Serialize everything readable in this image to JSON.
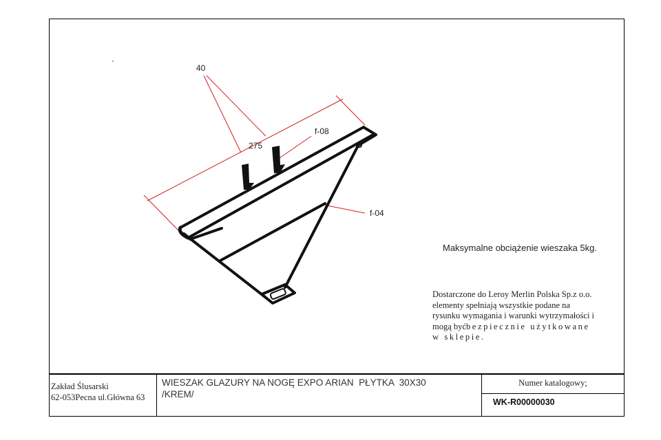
{
  "dimensions": {
    "width_top": "40",
    "length": "275",
    "part_upper": "f-08",
    "part_brace": "f-04"
  },
  "notes": {
    "max_load": "Maksymalne obciążenie wieszaka 5kg.",
    "supply_lines": [
      "Dostarczone do Leroy Merlin Polska Sp.z o.o.",
      "elementy spełniają wszystkie podane na",
      "rysunku wymagania i warunki wytrzymałości i"
    ],
    "supply_line4_prefix": "mogą być",
    "supply_line4_spaced": "bezpiecznie użytkowane",
    "supply_line5_spaced": "w sklepie."
  },
  "title_block": {
    "company_name": "Zakład Ślusarski",
    "company_address": "62-053Pecna ul.Główna 63",
    "drawing_title_line1": "WIESZAK GLAZURY NA NOGĘ EXPO ARIAN  PŁYTKA  30X30",
    "drawing_title_line2": "/KREM/",
    "catalog_label": "Numer katalogowy;",
    "catalog_number": "WK-R00000030"
  },
  "colors": {
    "dimension_line": "#cc2222",
    "part_stroke": "#111111",
    "frame": "#000000"
  }
}
